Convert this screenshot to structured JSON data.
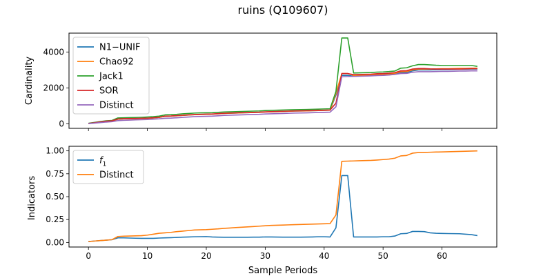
{
  "figure": {
    "title": "ruins (Q109607)",
    "xlabel": "Sample Periods"
  },
  "chart_data": [
    {
      "type": "line",
      "ylabel": "Cardinality",
      "xlim": [
        -3.3,
        69.3
      ],
      "ylim": [
        -250,
        5050
      ],
      "xticks": [
        0,
        10,
        20,
        30,
        40,
        50,
        60
      ],
      "yticks": [
        0,
        2000,
        4000
      ],
      "ytick_labels": [
        "0",
        "2000",
        "4000"
      ],
      "legend": "upper left",
      "grid": false,
      "x": [
        0,
        1,
        2,
        3,
        4,
        5,
        6,
        7,
        8,
        9,
        10,
        11,
        12,
        13,
        14,
        15,
        16,
        17,
        18,
        19,
        20,
        21,
        22,
        23,
        24,
        25,
        26,
        27,
        28,
        29,
        30,
        31,
        32,
        33,
        34,
        35,
        36,
        37,
        38,
        39,
        40,
        41,
        42,
        43,
        44,
        45,
        46,
        47,
        48,
        49,
        50,
        51,
        52,
        53,
        54,
        55,
        56,
        57,
        58,
        59,
        60,
        61,
        62,
        63,
        64,
        65,
        66
      ],
      "series": [
        {
          "name": "N1−UNIF",
          "color": "#1f77b4",
          "values": [
            20,
            60,
            100,
            140,
            160,
            260,
            280,
            285,
            290,
            300,
            310,
            330,
            360,
            420,
            430,
            450,
            470,
            490,
            510,
            520,
            530,
            540,
            560,
            580,
            590,
            600,
            610,
            620,
            630,
            640,
            660,
            670,
            680,
            690,
            700,
            710,
            715,
            720,
            730,
            740,
            750,
            760,
            1600,
            2700,
            2700,
            2650,
            2660,
            2670,
            2680,
            2700,
            2710,
            2730,
            2760,
            2850,
            2860,
            2950,
            3000,
            3000,
            3000,
            3010,
            3020,
            3020,
            3030,
            3040,
            3040,
            3050,
            3050
          ]
        },
        {
          "name": "Chao92",
          "color": "#ff7f0e",
          "values": [
            20,
            60,
            100,
            140,
            160,
            260,
            280,
            285,
            290,
            300,
            310,
            330,
            360,
            420,
            430,
            450,
            470,
            490,
            510,
            520,
            530,
            540,
            560,
            580,
            590,
            600,
            610,
            620,
            630,
            640,
            660,
            670,
            680,
            690,
            700,
            710,
            715,
            720,
            730,
            740,
            750,
            760,
            1700,
            2800,
            2800,
            2700,
            2710,
            2720,
            2730,
            2750,
            2760,
            2780,
            2810,
            2900,
            2910,
            3000,
            3050,
            3050,
            3050,
            3060,
            3070,
            3070,
            3080,
            3090,
            3090,
            3100,
            3100
          ]
        },
        {
          "name": "Jack1",
          "color": "#2ca02c",
          "values": [
            30,
            80,
            130,
            170,
            190,
            330,
            340,
            350,
            355,
            365,
            380,
            400,
            430,
            500,
            510,
            530,
            560,
            580,
            600,
            610,
            615,
            620,
            640,
            660,
            670,
            680,
            690,
            700,
            710,
            720,
            740,
            750,
            760,
            770,
            780,
            790,
            795,
            800,
            810,
            820,
            830,
            840,
            1800,
            4780,
            4780,
            2830,
            2840,
            2850,
            2860,
            2880,
            2890,
            2910,
            2940,
            3100,
            3120,
            3230,
            3300,
            3300,
            3280,
            3260,
            3250,
            3250,
            3250,
            3250,
            3250,
            3250,
            3200
          ]
        },
        {
          "name": "SOR",
          "color": "#d62728",
          "values": [
            20,
            60,
            110,
            150,
            170,
            270,
            290,
            295,
            300,
            310,
            320,
            340,
            370,
            430,
            440,
            460,
            480,
            500,
            520,
            530,
            540,
            550,
            570,
            590,
            600,
            610,
            620,
            630,
            640,
            650,
            670,
            680,
            690,
            700,
            710,
            720,
            725,
            730,
            740,
            750,
            760,
            770,
            1150,
            2800,
            2800,
            2740,
            2750,
            2760,
            2770,
            2790,
            2800,
            2820,
            2850,
            2950,
            2960,
            3050,
            3080,
            3080,
            3060,
            3050,
            3050,
            3050,
            3050,
            3050,
            3060,
            3070,
            3070
          ]
        },
        {
          "name": "Distinct",
          "color": "#9467bd",
          "values": [
            10,
            40,
            70,
            100,
            120,
            180,
            200,
            210,
            220,
            230,
            240,
            260,
            280,
            310,
            320,
            340,
            360,
            380,
            400,
            410,
            420,
            430,
            450,
            470,
            480,
            490,
            500,
            510,
            520,
            530,
            550,
            560,
            570,
            580,
            590,
            600,
            605,
            610,
            620,
            630,
            640,
            650,
            950,
            2620,
            2630,
            2640,
            2650,
            2660,
            2670,
            2690,
            2700,
            2720,
            2750,
            2800,
            2810,
            2870,
            2900,
            2900,
            2900,
            2910,
            2920,
            2920,
            2930,
            2940,
            2940,
            2950,
            2950
          ]
        }
      ]
    },
    {
      "type": "line",
      "ylabel": "Indicators",
      "xlim": [
        -3.3,
        69.3
      ],
      "ylim": [
        -0.05,
        1.05
      ],
      "xticks": [
        0,
        10,
        20,
        30,
        40,
        50,
        60
      ],
      "xtick_labels": [
        "0",
        "10",
        "20",
        "30",
        "40",
        "50",
        "60"
      ],
      "yticks": [
        0.0,
        0.25,
        0.5,
        0.75,
        1.0
      ],
      "ytick_labels": [
        "0.00",
        "0.25",
        "0.50",
        "0.75",
        "1.00"
      ],
      "legend": "upper left",
      "grid": false,
      "x": [
        0,
        1,
        2,
        3,
        4,
        5,
        6,
        7,
        8,
        9,
        10,
        11,
        12,
        13,
        14,
        15,
        16,
        17,
        18,
        19,
        20,
        21,
        22,
        23,
        24,
        25,
        26,
        27,
        28,
        29,
        30,
        31,
        32,
        33,
        34,
        35,
        36,
        37,
        38,
        39,
        40,
        41,
        42,
        43,
        44,
        45,
        46,
        47,
        48,
        49,
        50,
        51,
        52,
        53,
        54,
        55,
        56,
        57,
        58,
        59,
        60,
        61,
        62,
        63,
        64,
        65,
        66
      ],
      "series": [
        {
          "name": "f1",
          "color": "#1f77b4",
          "values": [
            0.01,
            0.015,
            0.02,
            0.025,
            0.03,
            0.05,
            0.05,
            0.048,
            0.046,
            0.045,
            0.045,
            0.045,
            0.048,
            0.05,
            0.052,
            0.055,
            0.058,
            0.06,
            0.062,
            0.063,
            0.064,
            0.06,
            0.058,
            0.057,
            0.057,
            0.057,
            0.057,
            0.057,
            0.058,
            0.058,
            0.06,
            0.06,
            0.059,
            0.058,
            0.058,
            0.058,
            0.058,
            0.059,
            0.06,
            0.062,
            0.062,
            0.06,
            0.16,
            0.73,
            0.73,
            0.06,
            0.06,
            0.06,
            0.06,
            0.06,
            0.062,
            0.062,
            0.07,
            0.095,
            0.098,
            0.12,
            0.12,
            0.118,
            0.105,
            0.1,
            0.098,
            0.097,
            0.096,
            0.095,
            0.09,
            0.085,
            0.075
          ]
        },
        {
          "name": "Distinct",
          "color": "#ff7f0e",
          "values": [
            0.01,
            0.015,
            0.02,
            0.025,
            0.03,
            0.065,
            0.068,
            0.07,
            0.072,
            0.074,
            0.08,
            0.09,
            0.1,
            0.105,
            0.11,
            0.118,
            0.124,
            0.13,
            0.136,
            0.138,
            0.14,
            0.144,
            0.148,
            0.154,
            0.158,
            0.162,
            0.166,
            0.17,
            0.174,
            0.178,
            0.182,
            0.186,
            0.188,
            0.19,
            0.192,
            0.194,
            0.196,
            0.198,
            0.2,
            0.202,
            0.204,
            0.206,
            0.3,
            0.886,
            0.888,
            0.89,
            0.892,
            0.894,
            0.896,
            0.9,
            0.905,
            0.91,
            0.92,
            0.945,
            0.95,
            0.975,
            0.982,
            0.983,
            0.985,
            0.987,
            0.988,
            0.99,
            0.992,
            0.994,
            0.996,
            0.998,
            1.0
          ]
        }
      ]
    }
  ]
}
